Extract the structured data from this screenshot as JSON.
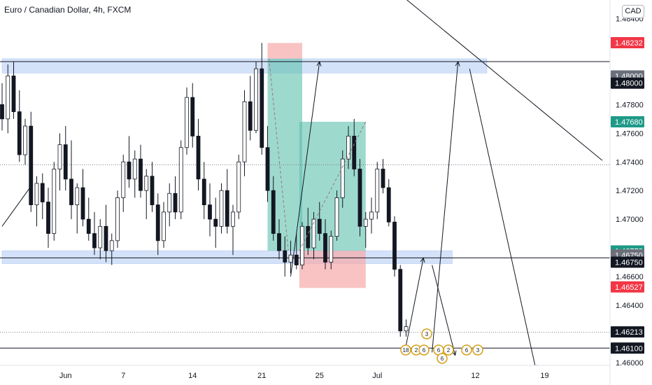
{
  "header": {
    "title": "Euro / Canadian Dollar, 4h, FXCM",
    "currency": "CAD"
  },
  "colors": {
    "up": "#ffffff",
    "down": "#131722",
    "zone": "#c5d8f7",
    "profit": "#5ebfad",
    "loss": "#f7aaaa",
    "text": "#131722",
    "badge_red": "#f23645",
    "badge_gray": "#6b6f7a",
    "badge_black": "#131722",
    "badge_teal": "#1e9a87"
  },
  "chart_data": {
    "type": "candlestick",
    "title": "Euro / Canadian Dollar, 4h, FXCM",
    "ylim": [
      1.4595,
      1.4853
    ],
    "x_ticks": [
      {
        "label": "Jun",
        "t": 11
      },
      {
        "label": "7",
        "t": 21
      },
      {
        "label": "14",
        "t": 33
      },
      {
        "label": "21",
        "t": 45
      },
      {
        "label": "25",
        "t": 55
      },
      {
        "label": "Jul",
        "t": 65
      },
      {
        "label": "12",
        "t": 82
      },
      {
        "label": "19",
        "t": 94
      }
    ],
    "y_ticks": [
      "1.48400",
      "1.47800",
      "1.47600",
      "1.47400",
      "1.47200",
      "1.47000",
      "1.46600",
      "1.46400",
      "1.46000"
    ],
    "price_badges": [
      {
        "label": "1.48232",
        "price": 1.48232,
        "style": "red"
      },
      {
        "label": "1.48000",
        "price": 1.48,
        "style": "gray"
      },
      {
        "label": "1.48000",
        "price": 1.4795,
        "style": "black"
      },
      {
        "label": "1.47680",
        "price": 1.4768,
        "style": "teal"
      },
      {
        "label": "1.46778",
        "price": 1.46778,
        "style": "teal"
      },
      {
        "label": "1.46750",
        "price": 1.4675,
        "style": "gray"
      },
      {
        "label": "1.46750",
        "price": 1.467,
        "style": "black"
      },
      {
        "label": "1.46527",
        "price": 1.46527,
        "style": "red"
      },
      {
        "label": "1.46213",
        "price": 1.46213,
        "style": "black"
      },
      {
        "label": "1.46100",
        "price": 1.461,
        "style": "black"
      }
    ],
    "zones": [
      {
        "t0": 0,
        "t1": 84,
        "p0": 1.4802,
        "p1": 1.4812
      },
      {
        "t0": 0,
        "t1": 78,
        "p0": 1.4669,
        "p1": 1.4678
      }
    ],
    "hlines": [
      1.481,
      1.4673,
      1.461
    ],
    "dotted_lines": [
      1.4738,
      1.4621
    ],
    "trendlines": [
      {
        "t0": 62,
        "p0": 1.488,
        "t1": 104,
        "p1": 1.4741
      },
      {
        "t0": 0,
        "p0": 1.4695,
        "t1": 5,
        "p1": 1.4723
      }
    ],
    "positions": [
      {
        "type": "short",
        "t0": 46,
        "t1": 52,
        "entry": 1.4812,
        "stop": 1.4823,
        "target": 1.4678
      },
      {
        "type": "long",
        "t0": 51.5,
        "t1": 63,
        "entry": 1.4678,
        "stop": 1.4652,
        "target": 1.4768
      }
    ],
    "arrows": [
      {
        "t0": 50,
        "p0": 1.466,
        "t1": 55,
        "p1": 1.481
      },
      {
        "t0": 70,
        "p0": 1.4612,
        "t1": 73,
        "p1": 1.4673
      },
      {
        "t0": 74.5,
        "p0": 1.4668,
        "t1": 78.5,
        "p1": 1.4605
      },
      {
        "t0": 74.5,
        "p0": 1.4607,
        "t1": 79,
        "p1": 1.481
      },
      {
        "t0": 81,
        "p0": 1.4805,
        "t1": 92.5,
        "p1": 1.4595
      }
    ],
    "event_markers": [
      "3",
      "18",
      "2",
      "6",
      "6",
      "2",
      "6",
      "6",
      "3"
    ],
    "candles": [
      [
        1.478,
        1.4795,
        1.4762,
        1.477
      ],
      [
        1.477,
        1.4808,
        1.476,
        1.48
      ],
      [
        1.48,
        1.481,
        1.477,
        1.4775
      ],
      [
        1.4775,
        1.479,
        1.474,
        1.4745
      ],
      [
        1.4745,
        1.477,
        1.4738,
        1.4765
      ],
      [
        1.4765,
        1.4775,
        1.4705,
        1.471
      ],
      [
        1.471,
        1.473,
        1.4695,
        1.4725
      ],
      [
        1.4725,
        1.4732,
        1.47,
        1.4712
      ],
      [
        1.4712,
        1.4722,
        1.468,
        1.469
      ],
      [
        1.469,
        1.474,
        1.4685,
        1.4735
      ],
      [
        1.4735,
        1.476,
        1.472,
        1.4752
      ],
      [
        1.4752,
        1.4765,
        1.472,
        1.4728
      ],
      [
        1.4728,
        1.4755,
        1.47,
        1.471
      ],
      [
        1.471,
        1.4725,
        1.469,
        1.4722
      ],
      [
        1.4722,
        1.4735,
        1.4695,
        1.47
      ],
      [
        1.47,
        1.4715,
        1.4685,
        1.469
      ],
      [
        1.469,
        1.4705,
        1.4675,
        1.468
      ],
      [
        1.468,
        1.47,
        1.4672,
        1.4695
      ],
      [
        1.4695,
        1.471,
        1.467,
        1.4678
      ],
      [
        1.4678,
        1.469,
        1.4668,
        1.4685
      ],
      [
        1.4685,
        1.472,
        1.468,
        1.4715
      ],
      [
        1.4715,
        1.4745,
        1.4705,
        1.474
      ],
      [
        1.474,
        1.4758,
        1.4722,
        1.4728
      ],
      [
        1.4728,
        1.4748,
        1.4715,
        1.4742
      ],
      [
        1.4742,
        1.4752,
        1.4715,
        1.472
      ],
      [
        1.472,
        1.4735,
        1.47,
        1.473
      ],
      [
        1.473,
        1.474,
        1.4705,
        1.471
      ],
      [
        1.471,
        1.4718,
        1.4675,
        1.4685
      ],
      [
        1.4685,
        1.4712,
        1.468,
        1.4705
      ],
      [
        1.4705,
        1.4725,
        1.4695,
        1.4718
      ],
      [
        1.4718,
        1.473,
        1.47,
        1.4705
      ],
      [
        1.4705,
        1.4755,
        1.47,
        1.475
      ],
      [
        1.475,
        1.4792,
        1.4745,
        1.4785
      ],
      [
        1.4785,
        1.4795,
        1.475,
        1.4758
      ],
      [
        1.4758,
        1.477,
        1.472,
        1.4728
      ],
      [
        1.4728,
        1.474,
        1.47,
        1.471
      ],
      [
        1.471,
        1.4725,
        1.4688,
        1.47
      ],
      [
        1.47,
        1.4715,
        1.468,
        1.4695
      ],
      [
        1.4695,
        1.4725,
        1.469,
        1.472
      ],
      [
        1.472,
        1.4735,
        1.469,
        1.4695
      ],
      [
        1.4695,
        1.471,
        1.4675,
        1.4705
      ],
      [
        1.4705,
        1.4745,
        1.47,
        1.474
      ],
      [
        1.474,
        1.479,
        1.473,
        1.4782
      ],
      [
        1.4782,
        1.48,
        1.4755,
        1.4762
      ],
      [
        1.4762,
        1.481,
        1.476,
        1.4805
      ],
      [
        1.4805,
        1.4823,
        1.4745,
        1.475
      ],
      [
        1.475,
        1.4765,
        1.4712,
        1.472
      ],
      [
        1.472,
        1.473,
        1.4685,
        1.469
      ],
      [
        1.469,
        1.47,
        1.4672,
        1.4678
      ],
      [
        1.4678,
        1.4688,
        1.466,
        1.467
      ],
      [
        1.467,
        1.4685,
        1.4662,
        1.4675
      ],
      [
        1.4675,
        1.469,
        1.4665,
        1.4668
      ],
      [
        1.4668,
        1.4698,
        1.4665,
        1.4695
      ],
      [
        1.4695,
        1.4708,
        1.4675,
        1.468
      ],
      [
        1.468,
        1.4705,
        1.4672,
        1.47
      ],
      [
        1.47,
        1.4712,
        1.4685,
        1.469
      ],
      [
        1.469,
        1.47,
        1.4665,
        1.467
      ],
      [
        1.467,
        1.4692,
        1.4665,
        1.4688
      ],
      [
        1.4688,
        1.472,
        1.4685,
        1.4715
      ],
      [
        1.4715,
        1.4748,
        1.4708,
        1.4742
      ],
      [
        1.4742,
        1.4765,
        1.4735,
        1.4758
      ],
      [
        1.4758,
        1.477,
        1.473,
        1.4735
      ],
      [
        1.4735,
        1.4742,
        1.4688,
        1.4695
      ],
      [
        1.4695,
        1.4705,
        1.468,
        1.47
      ],
      [
        1.47,
        1.4715,
        1.469,
        1.4705
      ],
      [
        1.4705,
        1.474,
        1.47,
        1.4735
      ],
      [
        1.4735,
        1.4742,
        1.4718,
        1.4722
      ],
      [
        1.4722,
        1.4728,
        1.4695,
        1.4698
      ],
      [
        1.4698,
        1.4702,
        1.466,
        1.4665
      ],
      [
        1.4665,
        1.4668,
        1.4618,
        1.4622
      ],
      [
        1.4622,
        1.463,
        1.4618,
        1.4625
      ]
    ]
  }
}
